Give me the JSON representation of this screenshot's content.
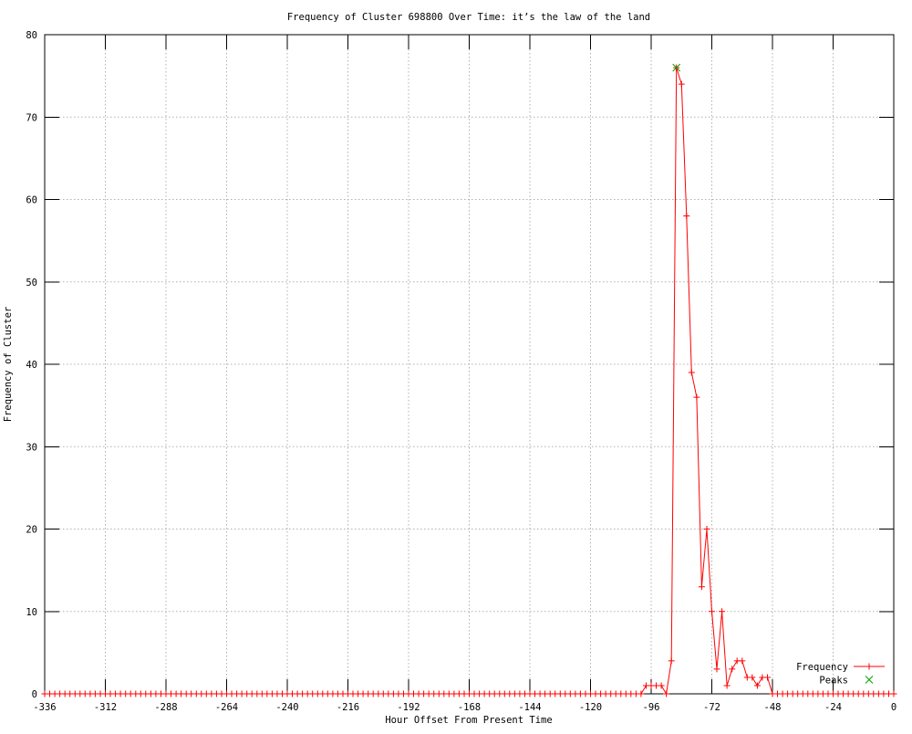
{
  "chart_data": {
    "type": "line",
    "title": "Frequency of Cluster 698800 Over Time: it’s the law of the land",
    "xlabel": "Hour Offset From Present Time",
    "ylabel": "Frequency of Cluster",
    "xlim": [
      -336,
      0
    ],
    "ylim": [
      0,
      80
    ],
    "x_tick_step": 24,
    "y_tick_step": 10,
    "grid": true,
    "legend_position": "bottom-right",
    "colors": {
      "frequency_series": "#ff0000",
      "peaks_series": "#00a000",
      "grid_line": "#b0b0b0",
      "axis": "#000000",
      "background": "#ffffff"
    },
    "series": [
      {
        "name": "Frequency",
        "marker": "plus",
        "color": "#ff0000",
        "x_start": -336,
        "x_end": 0,
        "x_step": 2,
        "default_value": 0,
        "nonzero_window_start": -98,
        "window_values": [
          1,
          1,
          1,
          1,
          0,
          4,
          76,
          74,
          58,
          39,
          36,
          13,
          20,
          10,
          3,
          10,
          1,
          3,
          4,
          4,
          2,
          2,
          1,
          2,
          2,
          0
        ]
      },
      {
        "name": "Peaks",
        "marker": "x",
        "color": "#00a000",
        "points": [
          [
            -86,
            76
          ]
        ]
      }
    ]
  }
}
